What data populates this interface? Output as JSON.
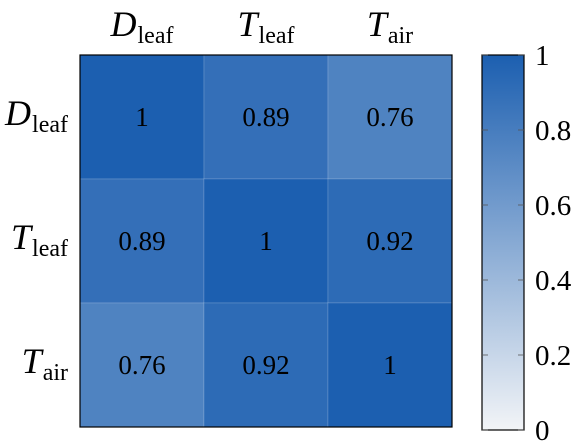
{
  "chart_data": {
    "type": "heatmap",
    "title": "",
    "columns": [
      {
        "main": "D",
        "sub": "leaf"
      },
      {
        "main": "T",
        "sub": "leaf"
      },
      {
        "main": "T",
        "sub": "air"
      }
    ],
    "rows": [
      {
        "main": "D",
        "sub": "leaf"
      },
      {
        "main": "T",
        "sub": "leaf"
      },
      {
        "main": "T",
        "sub": "air"
      }
    ],
    "values": [
      [
        1,
        0.89,
        0.76
      ],
      [
        0.89,
        1,
        0.92
      ],
      [
        0.76,
        0.92,
        1
      ]
    ],
    "cell_labels": [
      [
        "1",
        "0.89",
        "0.76"
      ],
      [
        "0.89",
        "1",
        "0.92"
      ],
      [
        "0.76",
        "0.92",
        "1"
      ]
    ],
    "colorbar": {
      "min": 0,
      "max": 1,
      "ticks": [
        0,
        0.2,
        0.4,
        0.6,
        0.8,
        1
      ],
      "tick_labels": [
        "0",
        "0.2",
        "0.4",
        "0.6",
        "0.8",
        "1"
      ],
      "color_low": "#f2f4f7",
      "color_high": "#1c5fb0",
      "placement": "right"
    },
    "grid": false
  }
}
